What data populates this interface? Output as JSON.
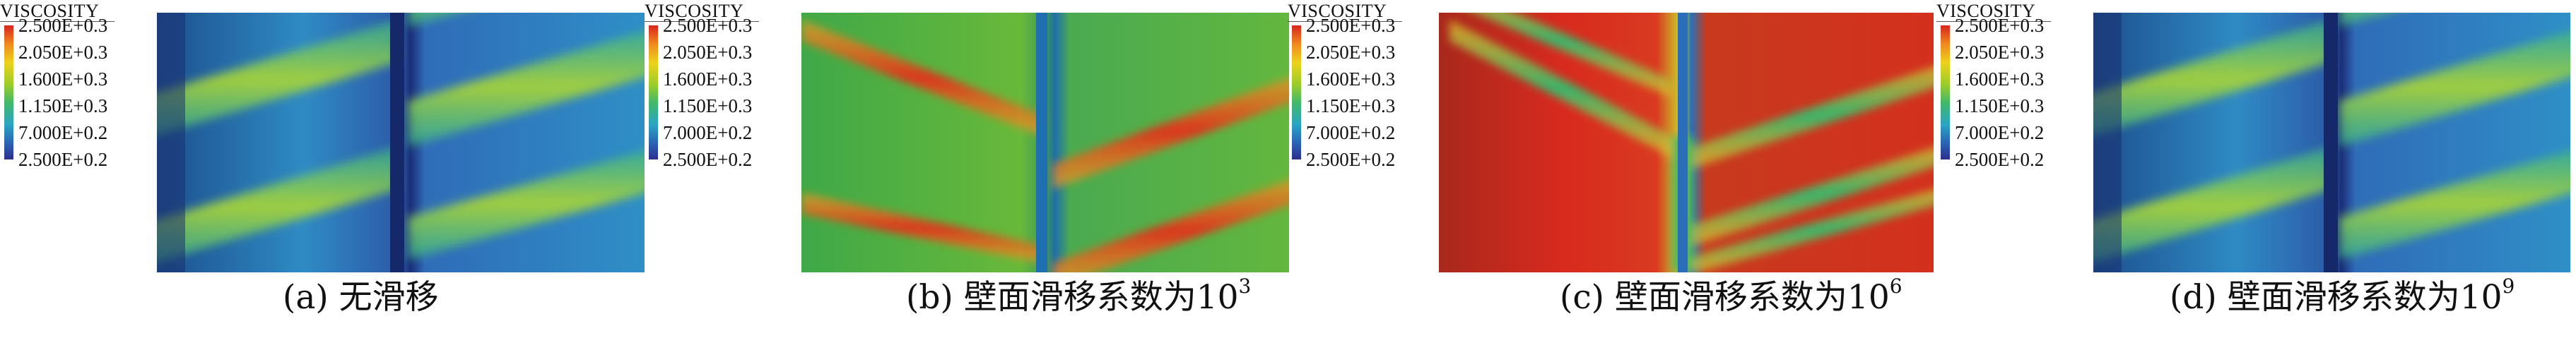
{
  "legend": {
    "title": "VISCOSITY",
    "ticks": [
      "2.500E+0.3",
      "2.050E+0.3",
      "1.600E+0.3",
      "1.150E+0.3",
      "7.000E+0.2",
      "2.500E+0.2"
    ]
  },
  "panels": [
    {
      "caption_main": "(a) 无滑移",
      "caption_sup": ""
    },
    {
      "caption_main": "(b) 壁面滑移系数为10",
      "caption_sup": "3"
    },
    {
      "caption_main": "(c) 壁面滑移系数为10",
      "caption_sup": "6"
    },
    {
      "caption_main": "(d) 壁面滑移系数为10",
      "caption_sup": "9"
    }
  ],
  "colors": {
    "high": "#d7241f",
    "mid_high": "#ecd31c",
    "mid": "#41b86b",
    "mid_low": "#2aa5c4",
    "low": "#2d2f8d",
    "seam": "#1f3d7a"
  }
}
